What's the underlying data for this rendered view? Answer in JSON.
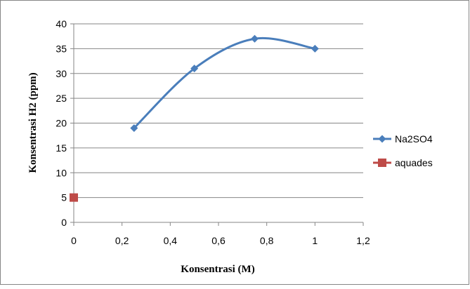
{
  "chart_data": {
    "type": "line",
    "title": "",
    "xlabel": "Konsentrasi (M)",
    "ylabel": "Konsentrasi H2 (ppm)",
    "xlim": [
      0,
      1.2
    ],
    "ylim": [
      0,
      40
    ],
    "x_ticks": [
      "0",
      "0,2",
      "0,4",
      "0,6",
      "0,8",
      "1",
      "1,2"
    ],
    "y_ticks": [
      "0",
      "5",
      "10",
      "15",
      "20",
      "25",
      "30",
      "35",
      "40"
    ],
    "grid": "horizontal",
    "legend_position": "right",
    "series": [
      {
        "name": "Na2SO4",
        "color": "#4a7ebb",
        "marker": "diamond",
        "line": "smooth",
        "points": [
          {
            "x": 0.25,
            "y": 19
          },
          {
            "x": 0.5,
            "y": 31
          },
          {
            "x": 0.75,
            "y": 37
          },
          {
            "x": 1.0,
            "y": 35
          }
        ]
      },
      {
        "name": "aquades",
        "color": "#be4b48",
        "marker": "square",
        "line": "none",
        "points": [
          {
            "x": 0,
            "y": 5
          }
        ]
      }
    ]
  }
}
